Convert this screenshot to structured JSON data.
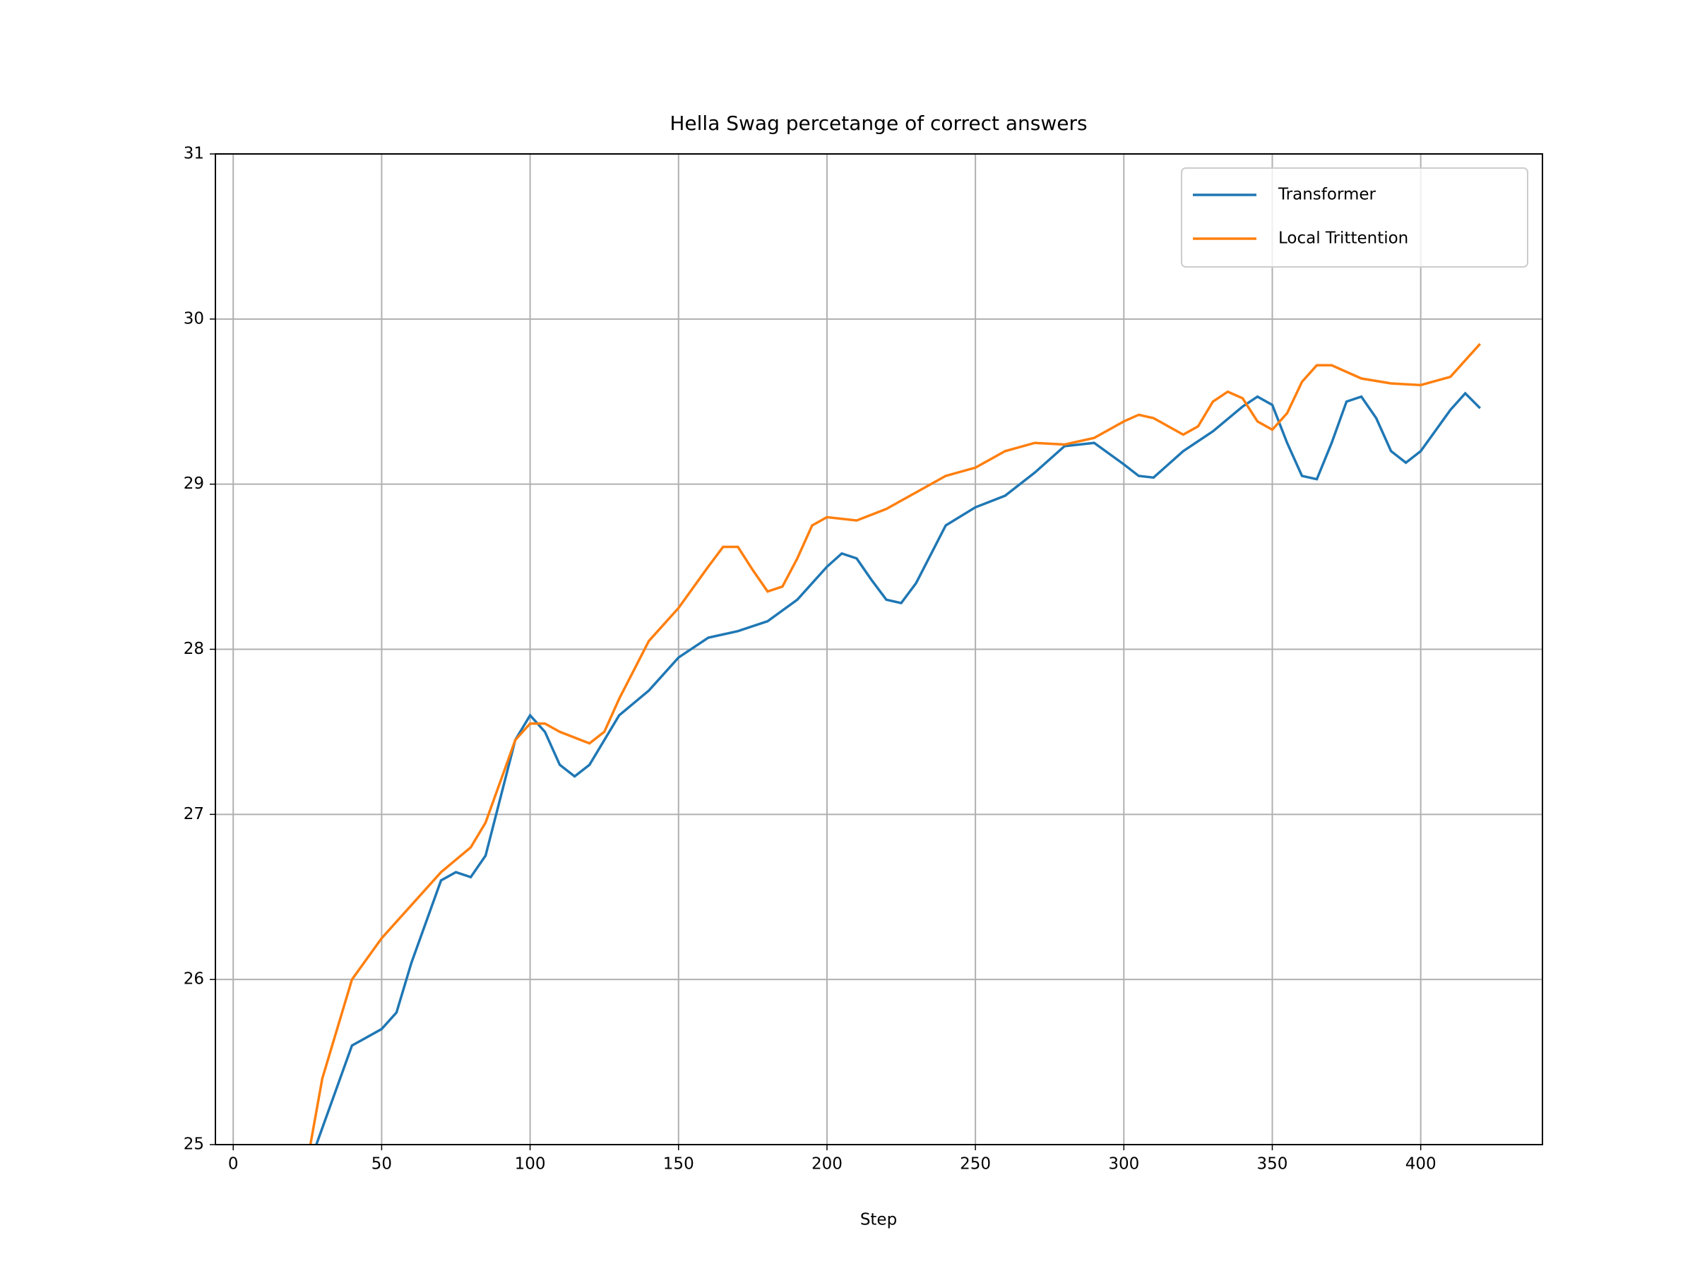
{
  "chart_data": {
    "type": "line",
    "title": "Hella Swag percetange of correct answers",
    "x_label": "Step",
    "xlim": [
      -6,
      441
    ],
    "xticks": [
      0,
      50,
      100,
      150,
      200,
      250,
      300,
      350,
      400
    ],
    "ylim": [
      25,
      31
    ],
    "yticks": [
      25,
      26,
      27,
      28,
      29,
      30,
      31
    ],
    "grid": true,
    "legend": "upper right",
    "series": [
      {
        "name": "Transformer",
        "color": "#1f77b4",
        "x": [
          25,
          30,
          40,
          50,
          55,
          60,
          70,
          75,
          80,
          85,
          90,
          95,
          100,
          105,
          110,
          115,
          120,
          125,
          130,
          140,
          150,
          160,
          170,
          180,
          190,
          200,
          205,
          210,
          215,
          220,
          225,
          230,
          240,
          250,
          260,
          270,
          280,
          290,
          300,
          305,
          310,
          320,
          330,
          340,
          345,
          350,
          355,
          360,
          365,
          370,
          375,
          380,
          385,
          390,
          395,
          400,
          410,
          415,
          420
        ],
        "values": [
          24.85,
          25.1,
          25.6,
          25.7,
          25.8,
          26.1,
          26.6,
          26.65,
          26.62,
          26.75,
          27.1,
          27.45,
          27.6,
          27.5,
          27.3,
          27.23,
          27.3,
          27.45,
          27.6,
          27.75,
          27.95,
          28.07,
          28.11,
          28.17,
          28.3,
          28.5,
          28.58,
          28.55,
          28.42,
          28.3,
          28.28,
          28.4,
          28.75,
          28.86,
          28.93,
          29.07,
          29.23,
          29.25,
          29.12,
          29.05,
          29.04,
          29.2,
          29.32,
          29.47,
          29.53,
          29.48,
          29.25,
          29.05,
          29.03,
          29.25,
          29.5,
          29.53,
          29.4,
          29.2,
          29.13,
          29.2,
          29.45,
          29.55,
          29.46
        ]
      },
      {
        "name": "Local Trittention",
        "color": "#ff7f0e",
        "x": [
          25,
          30,
          40,
          50,
          60,
          70,
          80,
          85,
          90,
          95,
          100,
          105,
          110,
          120,
          125,
          130,
          140,
          150,
          160,
          165,
          170,
          175,
          180,
          185,
          190,
          195,
          200,
          210,
          220,
          230,
          240,
          250,
          260,
          270,
          280,
          290,
          300,
          305,
          310,
          320,
          325,
          330,
          335,
          340,
          345,
          350,
          355,
          360,
          365,
          370,
          380,
          390,
          400,
          410,
          420
        ],
        "values": [
          24.9,
          25.4,
          26.0,
          26.25,
          26.45,
          26.65,
          26.8,
          26.95,
          27.2,
          27.45,
          27.55,
          27.55,
          27.5,
          27.43,
          27.5,
          27.7,
          28.05,
          28.25,
          28.5,
          28.62,
          28.62,
          28.48,
          28.35,
          28.38,
          28.55,
          28.75,
          28.8,
          28.78,
          28.85,
          28.95,
          29.05,
          29.1,
          29.2,
          29.25,
          29.24,
          29.28,
          29.38,
          29.42,
          29.4,
          29.3,
          29.35,
          29.5,
          29.56,
          29.52,
          29.38,
          29.33,
          29.43,
          29.62,
          29.72,
          29.72,
          29.64,
          29.61,
          29.6,
          29.65,
          29.85
        ]
      }
    ]
  }
}
